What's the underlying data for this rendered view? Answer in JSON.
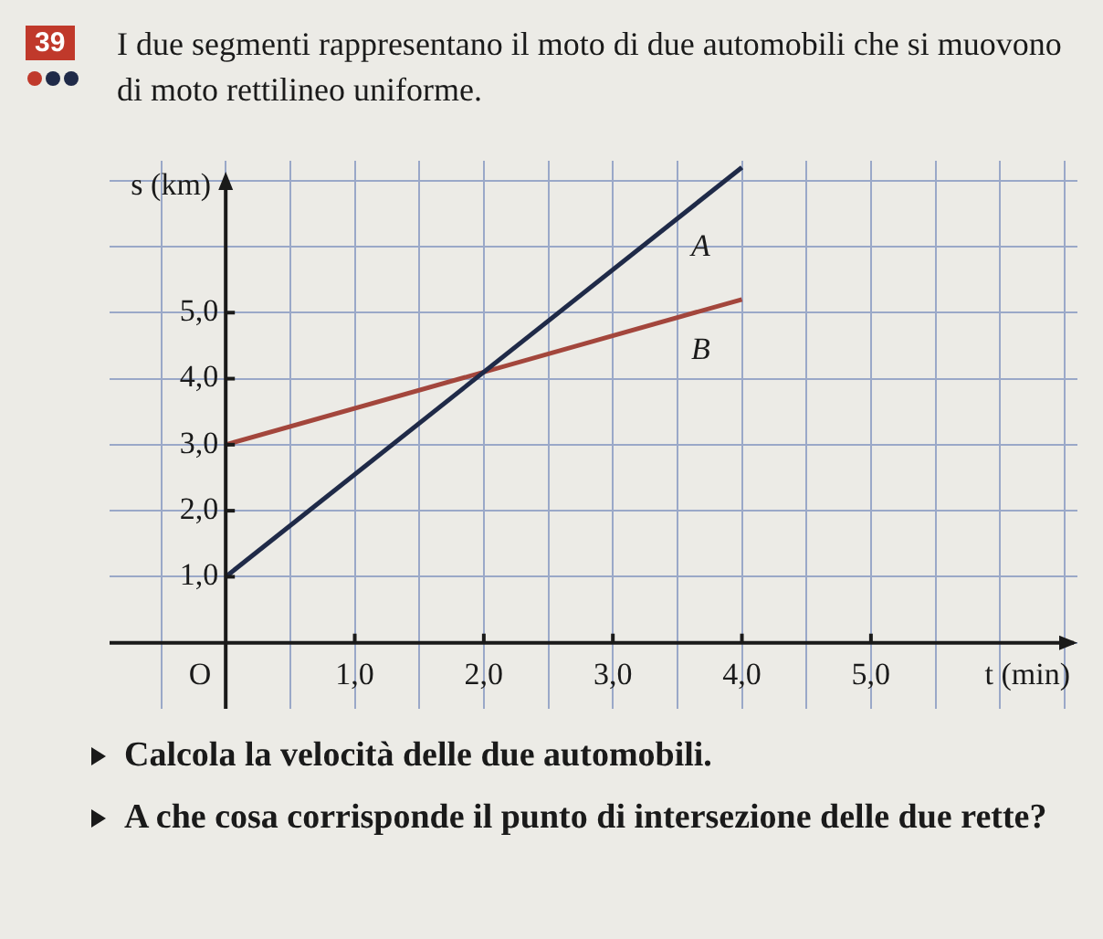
{
  "chart_data": {
    "type": "line",
    "title": "I due segmenti rappresentano il moto di due automobili che si muovono di moto rettilineo uniforme.",
    "xlabel": "t (min)",
    "ylabel": "s (km)",
    "annotations": [
      "39",
      "Calcola la velocità delle due automobili.",
      "A che cosa corrisponde il punto di intersezione delle due rette?",
      "O"
    ],
    "x": [
      0,
      4
    ],
    "series": [
      {
        "name": "A",
        "color": "#1f2a48",
        "values": [
          1.0,
          7.2
        ]
      },
      {
        "name": "B",
        "color": "#a3463c",
        "values": [
          3.0,
          5.2
        ]
      }
    ],
    "xlim": [
      -0.9,
      6.6
    ],
    "ylim": [
      -1,
      7.3
    ],
    "xticks": [
      {
        "value": -0.5,
        "label": null
      },
      {
        "value": 0,
        "label": null
      },
      {
        "value": 0.5,
        "label": null
      },
      {
        "value": 1,
        "label": "1,0"
      },
      {
        "value": 1.5,
        "label": null
      },
      {
        "value": 2,
        "label": "2,0"
      },
      {
        "value": 2.5,
        "label": null
      },
      {
        "value": 3,
        "label": "3,0"
      },
      {
        "value": 3.5,
        "label": null
      },
      {
        "value": 4,
        "label": "4,0"
      },
      {
        "value": 4.5,
        "label": null
      },
      {
        "value": 5,
        "label": "5,0"
      },
      {
        "value": 5.5,
        "label": null
      },
      {
        "value": 6,
        "label": null
      },
      {
        "value": 6.5,
        "label": null
      }
    ],
    "yticks": [
      {
        "value": 0,
        "label": null
      },
      {
        "value": 1,
        "label": "1,0"
      },
      {
        "value": 2,
        "label": "2,0"
      },
      {
        "value": 3,
        "label": "3,0"
      },
      {
        "value": 4,
        "label": "4,0"
      },
      {
        "value": 5,
        "label": "5,0"
      },
      {
        "value": 6,
        "label": null
      },
      {
        "value": 7,
        "label": null
      }
    ],
    "grid": true,
    "legend": false,
    "marker": "none",
    "line_style": "solid"
  }
}
